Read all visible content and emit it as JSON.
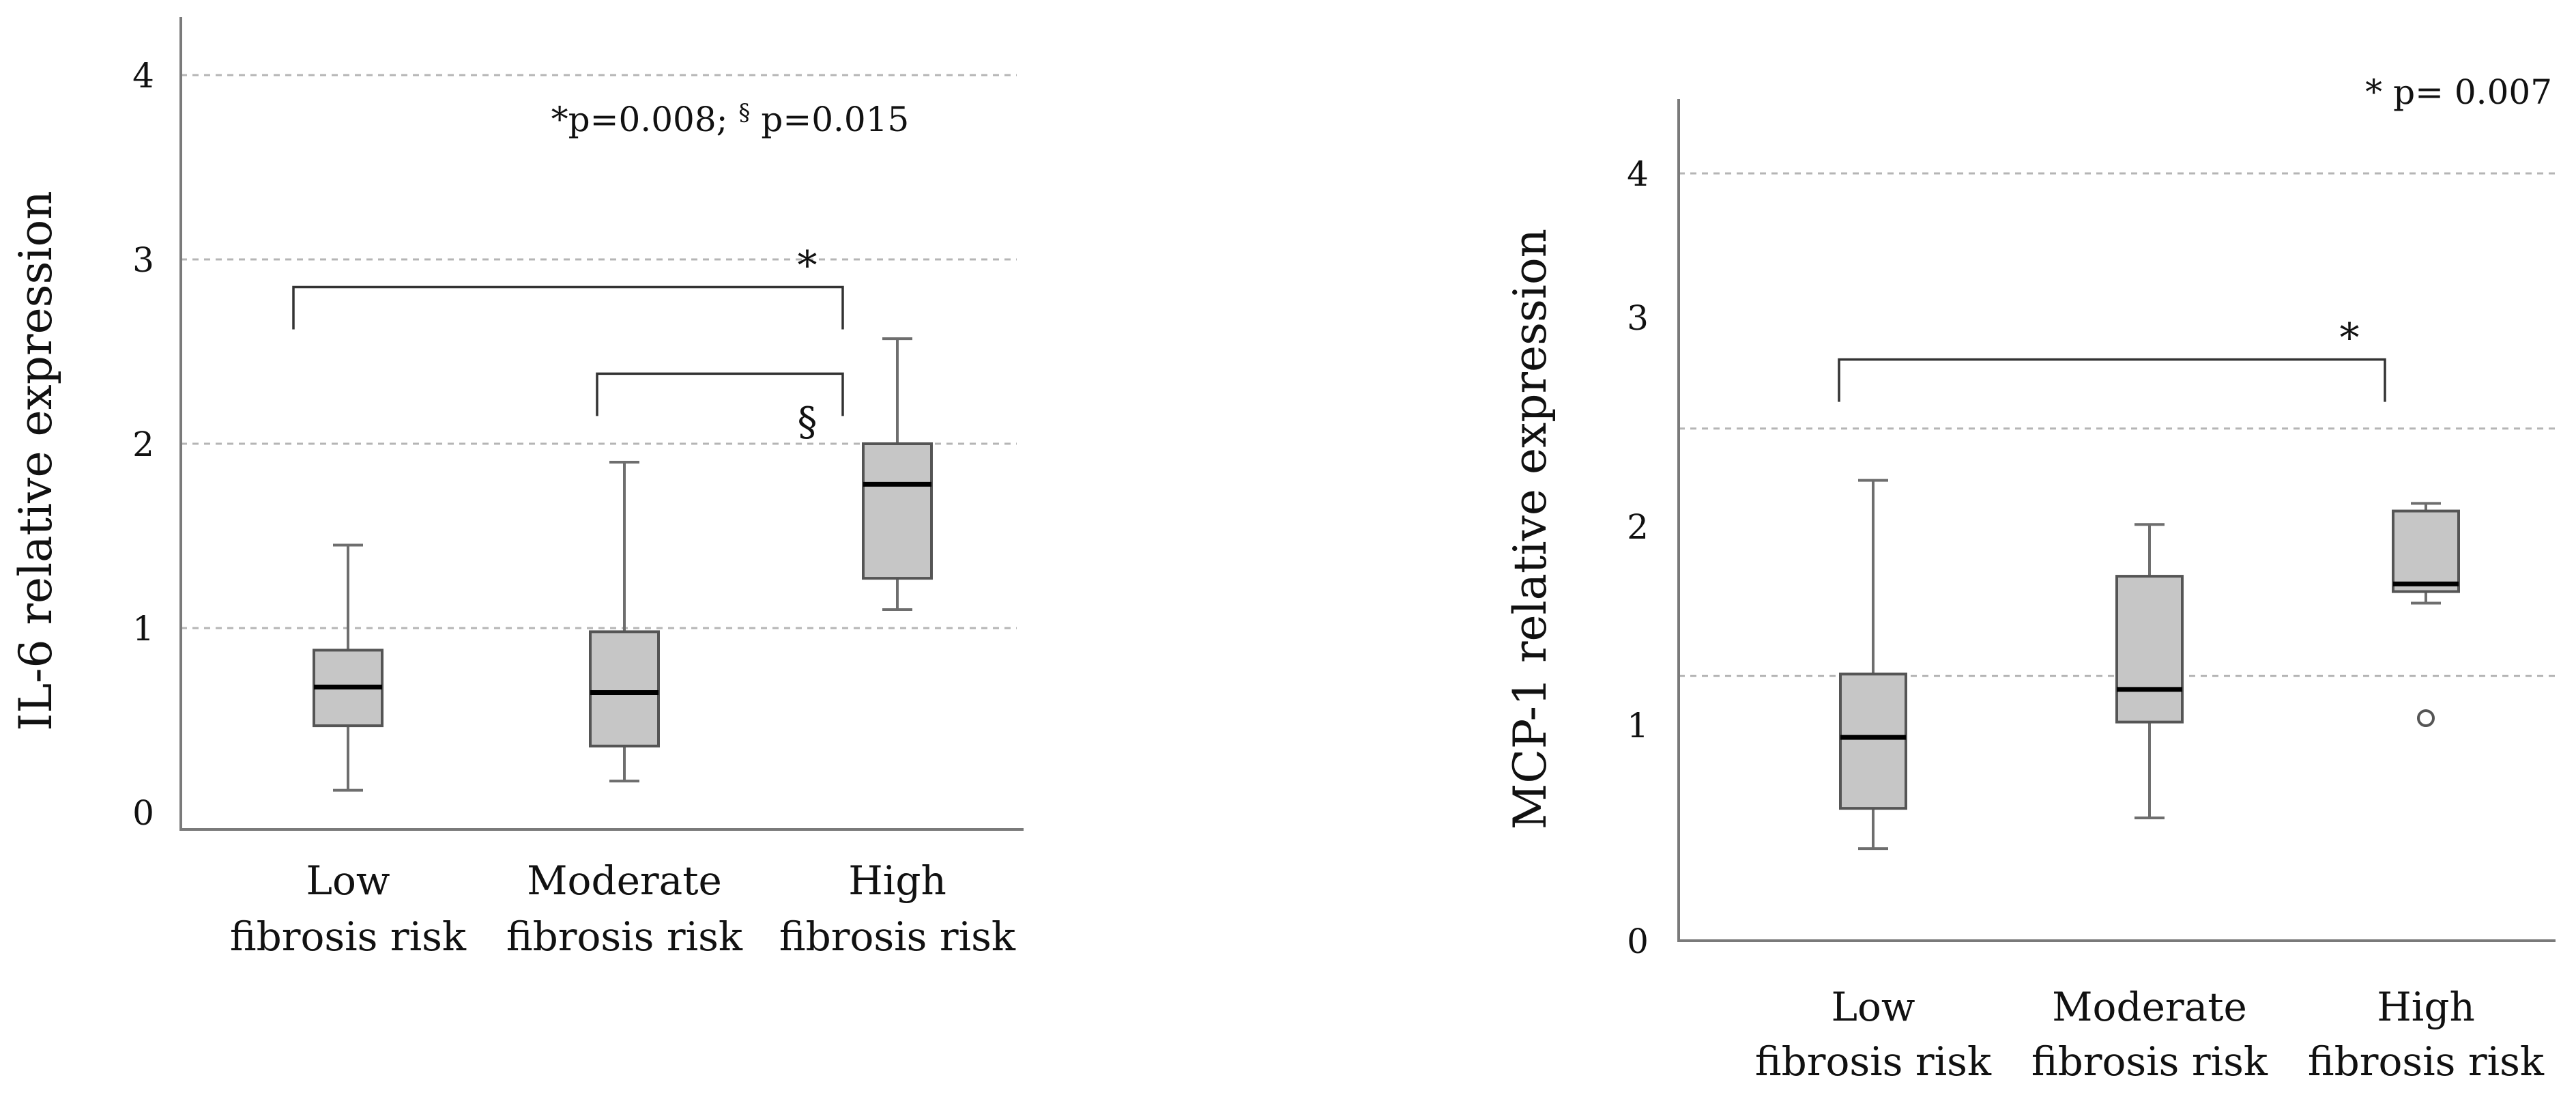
{
  "chart_data": [
    {
      "type": "box",
      "ylabel": "IL-6 relative expression",
      "ylim": [
        0,
        4.4
      ],
      "yticks": [
        "0",
        "1",
        "2",
        "3",
        "4"
      ],
      "annotation": "*p=0.008; § p=0.015",
      "categories": [
        {
          "line1": "Low",
          "line2": "fibrosis risk"
        },
        {
          "line1": "Moderate",
          "line2": "fibrosis risk"
        },
        {
          "line1": "High",
          "line2": "fibrosis risk"
        }
      ],
      "boxes": [
        {
          "min": 0.12,
          "q1": 0.47,
          "median": 0.68,
          "q3": 0.88,
          "max": 1.45,
          "outliers": []
        },
        {
          "min": 0.17,
          "q1": 0.36,
          "median": 0.65,
          "q3": 0.98,
          "max": 1.9,
          "outliers": []
        },
        {
          "min": 1.1,
          "q1": 1.27,
          "median": 1.78,
          "q3": 2.0,
          "max": 2.57,
          "outliers": []
        }
      ],
      "brackets": [
        {
          "from": 0,
          "to": 2,
          "y": 2.85,
          "label": "*"
        },
        {
          "from": 1,
          "to": 2,
          "y": 2.38,
          "label": "§"
        }
      ]
    },
    {
      "type": "box",
      "ylabel": "MCP-1 relative expression",
      "ylim": [
        0,
        4.4
      ],
      "yticks": [
        "0",
        "1",
        "2",
        "3",
        "4"
      ],
      "annotation": "* p= 0.007",
      "categories": [
        {
          "line1": "Low",
          "line2": "fibrosis risk"
        },
        {
          "line1": "Moderate",
          "line2": "fibrosis risk"
        },
        {
          "line1": "High",
          "line2": "fibrosis risk"
        }
      ],
      "boxes": [
        {
          "min": 0.48,
          "q1": 0.69,
          "median": 1.06,
          "q3": 1.39,
          "max": 2.4,
          "outliers": []
        },
        {
          "min": 0.64,
          "q1": 1.14,
          "median": 1.31,
          "q3": 1.9,
          "max": 2.17,
          "outliers": []
        },
        {
          "min": 1.76,
          "q1": 1.82,
          "median": 1.86,
          "q3": 2.24,
          "max": 2.28,
          "outliers": [
            1.16
          ]
        }
      ],
      "brackets": [
        {
          "from": 0,
          "to": 2,
          "y": 3.03,
          "label": "*"
        }
      ]
    }
  ],
  "colors": {
    "box_fill": "#c6c6c6",
    "median": "#000000",
    "grid": "#b5b5b5"
  }
}
